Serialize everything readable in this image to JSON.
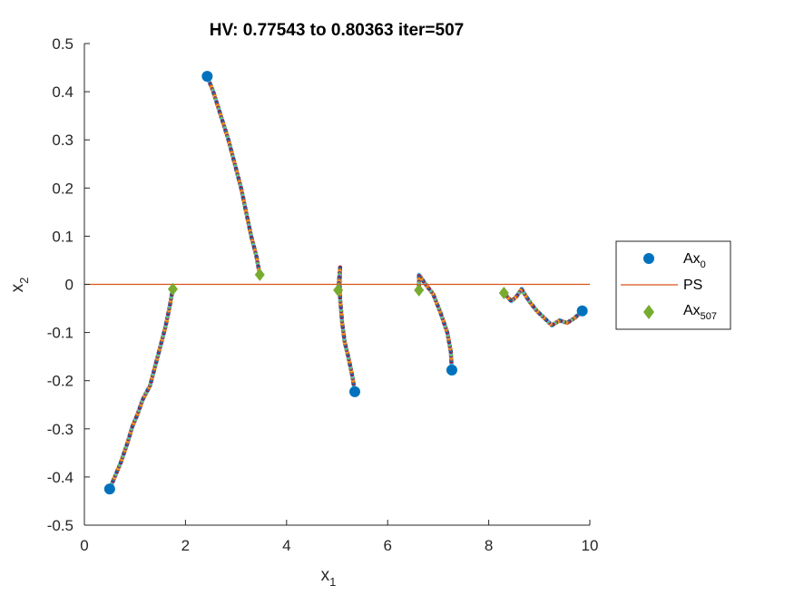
{
  "chart_data": {
    "type": "scatter",
    "title": "HV: 0.77543 to 0.80363 iter=507",
    "xlabel": {
      "main": "x",
      "sub": "1"
    },
    "ylabel": {
      "main": "x",
      "sub": "2"
    },
    "xlim": [
      0,
      10
    ],
    "ylim": [
      -0.5,
      0.5
    ],
    "x_ticks": [
      0,
      2,
      4,
      6,
      8,
      10
    ],
    "y_ticks": [
      -0.5,
      -0.4,
      -0.3,
      -0.2,
      -0.1,
      0,
      0.1,
      0.2,
      0.3,
      0.4,
      0.5
    ],
    "grid": false,
    "legend_position": "outside-right",
    "legend": [
      {
        "key": "start",
        "main": "Ax",
        "sub": "0",
        "marker": "circle"
      },
      {
        "key": "ps",
        "main": "PS",
        "sub": "",
        "marker": "line"
      },
      {
        "key": "final",
        "main": "Ax",
        "sub": "507",
        "marker": "diamond"
      }
    ],
    "colors": {
      "start": "#0072BD",
      "ps_line": "#D95319",
      "final": "#77AC30",
      "trace_palette": [
        "#0072BD",
        "#D95319",
        "#EDB120",
        "#7E2F8E",
        "#77AC30",
        "#4DBEEE",
        "#A2142F"
      ]
    },
    "ps_line": {
      "y": 0,
      "x_range": [
        0,
        10
      ]
    },
    "series": [
      {
        "name": "Ax_0",
        "points": [
          [
            0.5,
            -0.425
          ],
          [
            2.43,
            0.432
          ],
          [
            5.35,
            -0.223
          ],
          [
            7.27,
            -0.178
          ],
          [
            9.85,
            -0.055
          ]
        ]
      },
      {
        "name": "Ax_507",
        "points": [
          [
            1.75,
            -0.01
          ],
          [
            3.47,
            0.02
          ],
          [
            5.02,
            -0.012
          ],
          [
            6.62,
            -0.012
          ],
          [
            8.3,
            -0.018
          ]
        ]
      }
    ],
    "trajectories": [
      {
        "points": [
          [
            0.5,
            -0.425
          ],
          [
            0.6,
            -0.4
          ],
          [
            0.72,
            -0.37
          ],
          [
            0.85,
            -0.33
          ],
          [
            0.95,
            -0.295
          ],
          [
            1.05,
            -0.27
          ],
          [
            1.15,
            -0.24
          ],
          [
            1.3,
            -0.21
          ],
          [
            1.4,
            -0.17
          ],
          [
            1.5,
            -0.13
          ],
          [
            1.6,
            -0.09
          ],
          [
            1.68,
            -0.05
          ],
          [
            1.75,
            -0.01
          ]
        ]
      },
      {
        "points": [
          [
            2.43,
            0.432
          ],
          [
            2.55,
            0.4
          ],
          [
            2.7,
            0.35
          ],
          [
            2.85,
            0.3
          ],
          [
            3.0,
            0.24
          ],
          [
            3.1,
            0.2
          ],
          [
            3.2,
            0.15
          ],
          [
            3.3,
            0.1
          ],
          [
            3.4,
            0.06
          ],
          [
            3.47,
            0.02
          ]
        ]
      },
      {
        "points": [
          [
            5.35,
            -0.223
          ],
          [
            5.3,
            -0.19
          ],
          [
            5.22,
            -0.15
          ],
          [
            5.15,
            -0.12
          ],
          [
            5.1,
            -0.08
          ],
          [
            5.06,
            -0.03
          ],
          [
            5.05,
            0.0
          ],
          [
            5.06,
            0.035
          ],
          [
            5.02,
            -0.012
          ]
        ]
      },
      {
        "points": [
          [
            7.27,
            -0.178
          ],
          [
            7.25,
            -0.14
          ],
          [
            7.18,
            -0.1
          ],
          [
            7.05,
            -0.06
          ],
          [
            6.9,
            -0.02
          ],
          [
            6.75,
            0.0
          ],
          [
            6.62,
            0.02
          ],
          [
            6.62,
            -0.012
          ]
        ]
      },
      {
        "points": [
          [
            9.85,
            -0.055
          ],
          [
            9.7,
            -0.07
          ],
          [
            9.55,
            -0.08
          ],
          [
            9.4,
            -0.075
          ],
          [
            9.25,
            -0.085
          ],
          [
            9.1,
            -0.07
          ],
          [
            8.95,
            -0.055
          ],
          [
            8.8,
            -0.035
          ],
          [
            8.65,
            -0.01
          ],
          [
            8.55,
            -0.025
          ],
          [
            8.45,
            -0.035
          ],
          [
            8.3,
            -0.018
          ]
        ]
      }
    ]
  }
}
